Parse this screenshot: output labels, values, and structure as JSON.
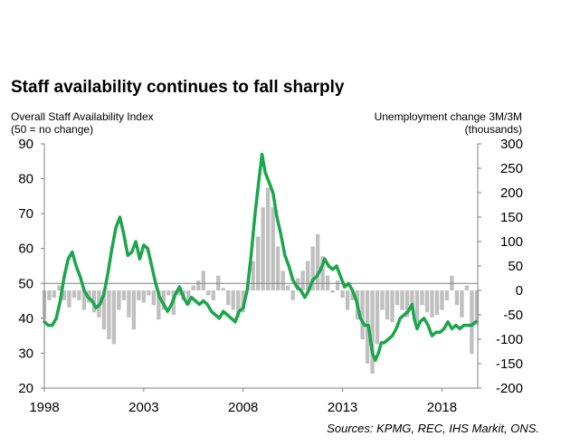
{
  "title": "Staff availability continues to fall sharply",
  "left_axis_title": [
    "Overall Staff Availability Index",
    "(50 = no change)"
  ],
  "right_axis_title": [
    "Unemployment change 3M/3M",
    "(thousands)"
  ],
  "source": "Sources: KPMG, REC, IHS Markit, ONS.",
  "colors": {
    "index_line": "#1aa64a",
    "unemployment_bars": "#c0c0c0",
    "reference_line": "#808080",
    "axis": "#808080"
  },
  "chart_data": {
    "type": "line",
    "x_axis": {
      "ticks": [
        1998,
        2003,
        2008,
        2013,
        2018
      ],
      "range": [
        1998,
        2019.8
      ]
    },
    "left_axis": {
      "ylim": [
        20,
        90
      ],
      "ticks": [
        20,
        30,
        40,
        50,
        60,
        70,
        80,
        90
      ]
    },
    "right_axis": {
      "ylim": [
        -200,
        300
      ],
      "ticks": [
        -200,
        -150,
        -100,
        -50,
        0,
        50,
        100,
        150,
        200,
        250,
        300
      ]
    },
    "reference_line": {
      "axis": "left",
      "value": 50
    },
    "series": [
      {
        "type": "line",
        "axis": "left",
        "color": "#1aa64a",
        "points": [
          [
            1998.0,
            39
          ],
          [
            1998.2,
            38
          ],
          [
            1998.4,
            38
          ],
          [
            1998.6,
            40
          ],
          [
            1998.8,
            45
          ],
          [
            1999.0,
            52
          ],
          [
            1999.2,
            57
          ],
          [
            1999.4,
            59
          ],
          [
            1999.6,
            55
          ],
          [
            1999.8,
            52
          ],
          [
            2000.0,
            48
          ],
          [
            2000.2,
            46
          ],
          [
            2000.4,
            45
          ],
          [
            2000.6,
            43
          ],
          [
            2000.8,
            44
          ],
          [
            2001.0,
            47
          ],
          [
            2001.2,
            53
          ],
          [
            2001.4,
            60
          ],
          [
            2001.6,
            66
          ],
          [
            2001.8,
            69
          ],
          [
            2002.0,
            64
          ],
          [
            2002.2,
            58
          ],
          [
            2002.4,
            59
          ],
          [
            2002.6,
            62
          ],
          [
            2002.8,
            57
          ],
          [
            2003.0,
            61
          ],
          [
            2003.2,
            60
          ],
          [
            2003.4,
            55
          ],
          [
            2003.6,
            50
          ],
          [
            2003.8,
            46
          ],
          [
            2004.0,
            44
          ],
          [
            2004.2,
            42
          ],
          [
            2004.4,
            44
          ],
          [
            2004.6,
            47
          ],
          [
            2004.8,
            49
          ],
          [
            2005.0,
            46
          ],
          [
            2005.2,
            44
          ],
          [
            2005.4,
            46
          ],
          [
            2005.6,
            45
          ],
          [
            2005.8,
            44
          ],
          [
            2006.0,
            45
          ],
          [
            2006.2,
            44
          ],
          [
            2006.4,
            42
          ],
          [
            2006.6,
            41
          ],
          [
            2006.8,
            40
          ],
          [
            2007.0,
            42
          ],
          [
            2007.2,
            41
          ],
          [
            2007.4,
            40
          ],
          [
            2007.6,
            39
          ],
          [
            2007.8,
            42
          ],
          [
            2008.0,
            43
          ],
          [
            2008.2,
            48
          ],
          [
            2008.4,
            58
          ],
          [
            2008.6,
            70
          ],
          [
            2008.8,
            80
          ],
          [
            2008.95,
            87
          ],
          [
            2009.1,
            82
          ],
          [
            2009.3,
            79
          ],
          [
            2009.5,
            76
          ],
          [
            2009.7,
            69
          ],
          [
            2009.9,
            64
          ],
          [
            2010.1,
            58
          ],
          [
            2010.3,
            55
          ],
          [
            2010.5,
            51
          ],
          [
            2010.7,
            49
          ],
          [
            2010.9,
            48
          ],
          [
            2011.1,
            46
          ],
          [
            2011.3,
            48
          ],
          [
            2011.5,
            51
          ],
          [
            2011.7,
            52
          ],
          [
            2011.9,
            54
          ],
          [
            2012.1,
            57
          ],
          [
            2012.3,
            55
          ],
          [
            2012.5,
            54
          ],
          [
            2012.7,
            55
          ],
          [
            2012.9,
            52
          ],
          [
            2013.1,
            49
          ],
          [
            2013.3,
            50
          ],
          [
            2013.5,
            48
          ],
          [
            2013.7,
            45
          ],
          [
            2013.9,
            40
          ],
          [
            2014.1,
            38
          ],
          [
            2014.3,
            38
          ],
          [
            2014.5,
            30
          ],
          [
            2014.65,
            28
          ],
          [
            2014.8,
            30
          ],
          [
            2014.95,
            33
          ],
          [
            2015.1,
            33
          ],
          [
            2015.3,
            34
          ],
          [
            2015.5,
            35
          ],
          [
            2015.7,
            37
          ],
          [
            2015.9,
            40
          ],
          [
            2016.1,
            41
          ],
          [
            2016.3,
            42
          ],
          [
            2016.5,
            44
          ],
          [
            2016.6,
            40
          ],
          [
            2016.75,
            37
          ],
          [
            2016.9,
            39
          ],
          [
            2017.1,
            40
          ],
          [
            2017.3,
            38
          ],
          [
            2017.5,
            35
          ],
          [
            2017.7,
            36
          ],
          [
            2017.9,
            36
          ],
          [
            2018.1,
            37
          ],
          [
            2018.3,
            39
          ],
          [
            2018.5,
            37
          ],
          [
            2018.7,
            38
          ],
          [
            2018.9,
            37
          ],
          [
            2019.1,
            38
          ],
          [
            2019.3,
            38
          ],
          [
            2019.5,
            38
          ],
          [
            2019.7,
            39
          ]
        ]
      },
      {
        "type": "bar",
        "axis": "right",
        "color": "#c0c0c0",
        "points": [
          [
            1998.0,
            -60
          ],
          [
            1998.25,
            -20
          ],
          [
            1998.5,
            -15
          ],
          [
            1998.75,
            10
          ],
          [
            1999.0,
            -20
          ],
          [
            1999.25,
            -35
          ],
          [
            1999.5,
            -15
          ],
          [
            1999.75,
            -20
          ],
          [
            2000.0,
            -40
          ],
          [
            2000.25,
            -25
          ],
          [
            2000.5,
            -45
          ],
          [
            2000.75,
            -55
          ],
          [
            2001.0,
            -80
          ],
          [
            2001.25,
            -100
          ],
          [
            2001.5,
            -110
          ],
          [
            2001.75,
            -40
          ],
          [
            2002.0,
            -20
          ],
          [
            2002.25,
            -55
          ],
          [
            2002.5,
            -80
          ],
          [
            2002.75,
            -20
          ],
          [
            2003.0,
            -25
          ],
          [
            2003.25,
            -10
          ],
          [
            2003.5,
            -30
          ],
          [
            2003.75,
            -60
          ],
          [
            2004.0,
            -40
          ],
          [
            2004.25,
            -10
          ],
          [
            2004.5,
            -50
          ],
          [
            2004.75,
            -10
          ],
          [
            2005.0,
            -20
          ],
          [
            2005.25,
            -30
          ],
          [
            2005.5,
            10
          ],
          [
            2005.75,
            20
          ],
          [
            2006.0,
            40
          ],
          [
            2006.25,
            -10
          ],
          [
            2006.5,
            -20
          ],
          [
            2006.75,
            30
          ],
          [
            2007.0,
            5
          ],
          [
            2007.25,
            -30
          ],
          [
            2007.5,
            -40
          ],
          [
            2007.75,
            -55
          ],
          [
            2008.0,
            -45
          ],
          [
            2008.25,
            10
          ],
          [
            2008.5,
            60
          ],
          [
            2008.75,
            110
          ],
          [
            2009.0,
            170
          ],
          [
            2009.25,
            210
          ],
          [
            2009.5,
            170
          ],
          [
            2009.75,
            90
          ],
          [
            2010.0,
            40
          ],
          [
            2010.25,
            10
          ],
          [
            2010.5,
            -20
          ],
          [
            2010.75,
            25
          ],
          [
            2011.0,
            40
          ],
          [
            2011.25,
            60
          ],
          [
            2011.5,
            90
          ],
          [
            2011.75,
            115
          ],
          [
            2012.0,
            70
          ],
          [
            2012.25,
            30
          ],
          [
            2012.5,
            -5
          ],
          [
            2012.75,
            20
          ],
          [
            2013.0,
            -15
          ],
          [
            2013.25,
            -40
          ],
          [
            2013.5,
            -20
          ],
          [
            2013.75,
            -60
          ],
          [
            2014.0,
            -100
          ],
          [
            2014.25,
            -150
          ],
          [
            2014.5,
            -170
          ],
          [
            2014.75,
            -110
          ],
          [
            2015.0,
            -40
          ],
          [
            2015.25,
            -60
          ],
          [
            2015.5,
            -65
          ],
          [
            2015.75,
            -30
          ],
          [
            2016.0,
            -40
          ],
          [
            2016.25,
            -55
          ],
          [
            2016.5,
            -40
          ],
          [
            2016.75,
            -65
          ],
          [
            2017.0,
            -30
          ],
          [
            2017.25,
            -45
          ],
          [
            2017.5,
            -55
          ],
          [
            2017.75,
            -50
          ],
          [
            2018.0,
            -40
          ],
          [
            2018.25,
            -20
          ],
          [
            2018.5,
            30
          ],
          [
            2018.75,
            -30
          ],
          [
            2019.0,
            -55
          ],
          [
            2019.25,
            10
          ],
          [
            2019.5,
            -130
          ],
          [
            2019.75,
            -70
          ]
        ]
      }
    ]
  }
}
